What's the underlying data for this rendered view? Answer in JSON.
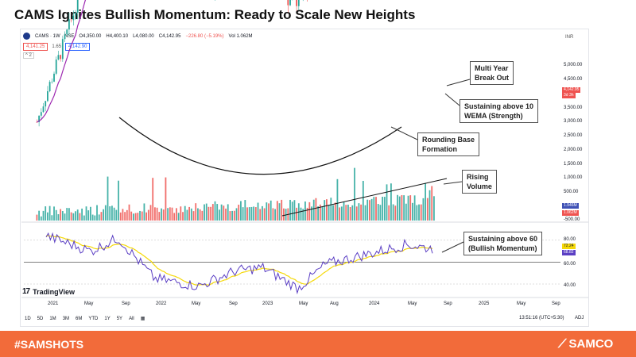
{
  "title": "CAMS Ignites Bullish Momentum: Ready to Scale New Heights",
  "symbol_line": {
    "symbol": "CAMS · 1W · NSE",
    "open": "O4,350.00",
    "high": "H4,400.10",
    "low": "L4,080.00",
    "close": "C4,142.95",
    "change": "−226.80 (−5.19%)",
    "volume": "Vol 1.062M"
  },
  "quote": {
    "sell": "4,141.25",
    "spread": "1.65",
    "buy": "4,142.90"
  },
  "collapse_label": "^ 2",
  "currency": "INR",
  "price_axis": [
    "5,000.00",
    "4,500.00",
    "3,500.00",
    "3,000.00",
    "2,500.00",
    "2,000.00",
    "1,500.00"
  ],
  "price_tag": {
    "price": "4,142.95",
    "countdown": "3d 3h"
  },
  "volume_axis": [
    "1,000.00",
    "500.00"
  ],
  "volume_tags": {
    "ma": "1.946M",
    "vol": "1.062M",
    "zero": "-500.00"
  },
  "rsi_axis": [
    "80.00",
    "60.00",
    "40.00"
  ],
  "rsi_tags": {
    "a": "72.24",
    "b": "68.82"
  },
  "x_axis": [
    "2021",
    "May",
    "Sep",
    "2022",
    "May",
    "Sep",
    "2023",
    "May",
    "Aug",
    "2024",
    "May",
    "Sep",
    "2025",
    "May",
    "Sep"
  ],
  "tv_brand": "TradingView",
  "timeframes": [
    "1D",
    "5D",
    "1M",
    "3M",
    "6M",
    "YTD",
    "1Y",
    "5Y",
    "All"
  ],
  "time_readout": "13:51:16 (UTC+5:30)",
  "adj_label": "ADJ",
  "annotations": {
    "breakout": [
      "Multi Year",
      "Break Out"
    ],
    "wema": [
      "Sustaining above 10",
      "WEMA (Strength)"
    ],
    "rounding": [
      "Rounding Base",
      "Formation"
    ],
    "volume": [
      "Rising",
      "Volume"
    ],
    "rsi": [
      "Sustaining above 60",
      "(Bullish Momentum)"
    ]
  },
  "footer": {
    "hashtag": "#SAMSHOTS",
    "brand": "SAMCO"
  },
  "colors": {
    "up": "#26a69a",
    "down": "#ef5350",
    "wema": "#9c27b0",
    "rsi": "#5b3fc4",
    "rsi_ma": "#f5d90a",
    "footer": "#f26b3a"
  },
  "chart_data": [
    {
      "type": "candlestick",
      "title": "CAMS · 1W · NSE",
      "overlay": "10 WEMA",
      "ylim": [
        1000,
        5300
      ],
      "key_points": [
        {
          "date": "2020-12",
          "close": 1350
        },
        {
          "date": "2021-04",
          "close": 2100
        },
        {
          "date": "2021-07",
          "close": 3000
        },
        {
          "date": "2021-09",
          "close": 3900
        },
        {
          "date": "2021-12",
          "close": 3100
        },
        {
          "date": "2022-03",
          "close": 2600
        },
        {
          "date": "2022-06",
          "close": 2300
        },
        {
          "date": "2022-09",
          "close": 2350
        },
        {
          "date": "2022-12",
          "close": 2450
        },
        {
          "date": "2023-04",
          "close": 2200
        },
        {
          "date": "2023-08",
          "close": 2400
        },
        {
          "date": "2024-01",
          "close": 3000
        },
        {
          "date": "2024-05",
          "close": 3400
        },
        {
          "date": "2024-07",
          "close": 4100
        },
        {
          "date": "2024-08",
          "close": 4142.95
        }
      ],
      "breakout_level": 3900
    },
    {
      "type": "bar",
      "title": "Volume",
      "trend": "rising",
      "last_volume": "1.062M",
      "volume_ma": "1.946M"
    },
    {
      "type": "line",
      "title": "RSI",
      "ylim": [
        30,
        90
      ],
      "reference_level": 60,
      "x": [
        "2021-01",
        "2021-06",
        "2021-09",
        "2022-01",
        "2022-06",
        "2022-10",
        "2023-01",
        "2023-05",
        "2023-08",
        "2024-01",
        "2024-05",
        "2024-08"
      ],
      "values": [
        84,
        70,
        82,
        45,
        38,
        52,
        55,
        36,
        58,
        68,
        76,
        72
      ],
      "last_values": [
        72.24,
        68.82
      ]
    }
  ]
}
